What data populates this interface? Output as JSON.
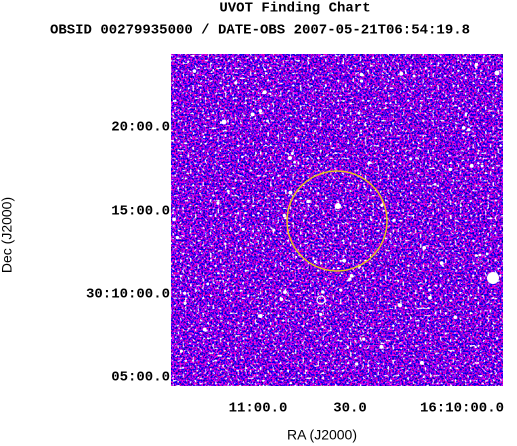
{
  "title": "UVOT Finding Chart",
  "subtitle": "OBSID 00279935000 / DATE-OBS 2007-05-21T06:54:19.8",
  "x_label": "RA (J2000)",
  "y_label": "Dec (J2000)",
  "x_ticks": [
    "11:00.0",
    "30.0",
    "16:10:00.0"
  ],
  "y_ticks": [
    "20:00.0",
    "15:00.0",
    "30:10:00.0",
    "05:00.0"
  ]
}
